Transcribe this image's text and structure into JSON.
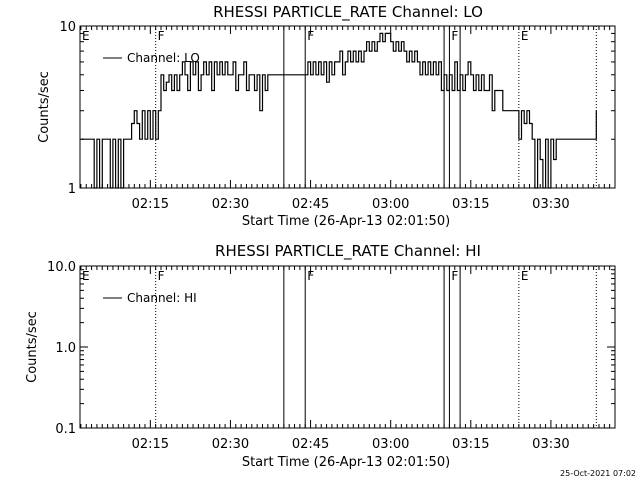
{
  "timestamp": "25-Oct-2021 07:02",
  "chart_data": [
    {
      "type": "line",
      "title": "RHESSI PARTICLE_RATE Channel: LO",
      "xlabel": "Start Time (26-Apr-13 02:01:50)",
      "ylabel": "Counts/sec",
      "yscale": "log",
      "ylim": [
        1,
        10
      ],
      "xlim": [
        "02:01:50",
        "03:42:00"
      ],
      "y_ticks": [
        "1",
        "10"
      ],
      "x_ticks": [
        "02:15",
        "02:30",
        "02:45",
        "03:00",
        "03:15",
        "03:30"
      ],
      "legend": "Channel: LO",
      "legend_position": "top-left",
      "markers": [
        {
          "label": "E",
          "time": "02:01:50",
          "style": "none"
        },
        {
          "label": "F",
          "time": "02:16:00",
          "style": "dotted"
        },
        {
          "label": "",
          "time": "02:40:00",
          "style": "solid"
        },
        {
          "label": "F",
          "time": "02:44:00",
          "style": "solid"
        },
        {
          "label": "",
          "time": "03:10:00",
          "style": "solid"
        },
        {
          "label": "F",
          "time": "03:11:00",
          "style": "solid"
        },
        {
          "label": "",
          "time": "03:13:00",
          "style": "solid"
        },
        {
          "label": "E",
          "time": "03:24:00",
          "style": "dotted"
        },
        {
          "label": "",
          "time": "03:38:30",
          "style": "dotted"
        }
      ],
      "series": [
        {
          "values": [
            [
              "02:02:00",
              2
            ],
            [
              "02:03:00",
              2
            ],
            [
              "02:04:00",
              2
            ],
            [
              "02:04:30",
              1
            ],
            [
              "02:05:00",
              2
            ],
            [
              "02:05:30",
              1
            ],
            [
              "02:06:00",
              2
            ],
            [
              "02:07:00",
              2
            ],
            [
              "02:07:30",
              1
            ],
            [
              "02:08:00",
              2
            ],
            [
              "02:08:30",
              1
            ],
            [
              "02:09:00",
              2
            ],
            [
              "02:09:30",
              1
            ],
            [
              "02:10:00",
              2
            ],
            [
              "02:11:00",
              2
            ],
            [
              "02:11:30",
              2.5
            ],
            [
              "02:12:00",
              3
            ],
            [
              "02:12:30",
              2.5
            ],
            [
              "02:13:00",
              2
            ],
            [
              "02:13:30",
              3
            ],
            [
              "02:14:00",
              2
            ],
            [
              "02:14:30",
              3
            ],
            [
              "02:15:00",
              2
            ],
            [
              "02:15:30",
              3
            ],
            [
              "02:16:00",
              2
            ],
            [
              "02:16:30",
              3
            ],
            [
              "02:17:00",
              5
            ],
            [
              "02:17:30",
              4
            ],
            [
              "02:18:00",
              4.5
            ],
            [
              "02:18:30",
              5
            ],
            [
              "02:19:00",
              4
            ],
            [
              "02:19:30",
              5
            ],
            [
              "02:20:00",
              4
            ],
            [
              "02:20:30",
              5
            ],
            [
              "02:21:00",
              6
            ],
            [
              "02:21:30",
              5
            ],
            [
              "02:22:00",
              4
            ],
            [
              "02:22:30",
              6
            ],
            [
              "02:23:00",
              5
            ],
            [
              "02:23:30",
              6
            ],
            [
              "02:24:00",
              4
            ],
            [
              "02:24:30",
              5
            ],
            [
              "02:25:00",
              6
            ],
            [
              "02:25:30",
              5
            ],
            [
              "02:26:00",
              6
            ],
            [
              "02:26:30",
              4
            ],
            [
              "02:27:00",
              6
            ],
            [
              "02:27:30",
              5
            ],
            [
              "02:28:00",
              6
            ],
            [
              "02:28:30",
              5
            ],
            [
              "02:29:00",
              6
            ],
            [
              "02:29:30",
              5
            ],
            [
              "02:30:00",
              5
            ],
            [
              "02:30:30",
              6
            ],
            [
              "02:31:00",
              4
            ],
            [
              "02:31:30",
              5
            ],
            [
              "02:32:00",
              5
            ],
            [
              "02:32:30",
              6
            ],
            [
              "02:33:00",
              4
            ],
            [
              "02:33:30",
              5
            ],
            [
              "02:34:00",
              5
            ],
            [
              "02:34:30",
              4
            ],
            [
              "02:35:00",
              5
            ],
            [
              "02:35:30",
              3
            ],
            [
              "02:36:00",
              5
            ],
            [
              "02:36:30",
              4
            ],
            [
              "02:37:00",
              5
            ],
            [
              "02:38:00",
              5
            ],
            [
              "02:39:00",
              5
            ],
            [
              "02:40:00",
              5
            ],
            [
              "02:41:00",
              5
            ],
            [
              "02:42:00",
              5
            ],
            [
              "02:43:00",
              5
            ],
            [
              "02:44:00",
              5
            ],
            [
              "02:44:30",
              6
            ],
            [
              "02:45:00",
              5
            ],
            [
              "02:45:30",
              6
            ],
            [
              "02:46:00",
              5
            ],
            [
              "02:46:30",
              6
            ],
            [
              "02:47:00",
              5
            ],
            [
              "02:47:30",
              6
            ],
            [
              "02:48:00",
              4.5
            ],
            [
              "02:48:30",
              6
            ],
            [
              "02:49:00",
              5
            ],
            [
              "02:49:30",
              6
            ],
            [
              "02:50:00",
              6
            ],
            [
              "02:50:30",
              7
            ],
            [
              "02:51:00",
              5
            ],
            [
              "02:51:30",
              6
            ],
            [
              "02:52:00",
              7
            ],
            [
              "02:52:30",
              6
            ],
            [
              "02:53:00",
              7
            ],
            [
              "02:53:30",
              6
            ],
            [
              "02:54:00",
              7
            ],
            [
              "02:54:30",
              6
            ],
            [
              "02:55:00",
              7
            ],
            [
              "02:55:30",
              8
            ],
            [
              "02:56:00",
              7
            ],
            [
              "02:56:30",
              8
            ],
            [
              "02:57:00",
              7
            ],
            [
              "02:57:30",
              8
            ],
            [
              "02:58:00",
              9
            ],
            [
              "02:58:30",
              8
            ],
            [
              "02:59:00",
              9
            ],
            [
              "02:59:30",
              9
            ],
            [
              "03:00:00",
              8
            ],
            [
              "03:00:30",
              7
            ],
            [
              "03:01:00",
              8
            ],
            [
              "03:01:30",
              7
            ],
            [
              "03:02:00",
              8
            ],
            [
              "03:02:30",
              7
            ],
            [
              "03:03:00",
              6
            ],
            [
              "03:03:30",
              7
            ],
            [
              "03:04:00",
              6
            ],
            [
              "03:04:30",
              7
            ],
            [
              "03:05:00",
              6
            ],
            [
              "03:05:30",
              5
            ],
            [
              "03:06:00",
              6
            ],
            [
              "03:06:30",
              5
            ],
            [
              "03:07:00",
              6
            ],
            [
              "03:07:30",
              5
            ],
            [
              "03:08:00",
              6
            ],
            [
              "03:08:30",
              5
            ],
            [
              "03:09:00",
              6
            ],
            [
              "03:09:30",
              4
            ],
            [
              "03:10:00",
              5
            ],
            [
              "03:10:30",
              4
            ],
            [
              "03:11:00",
              5
            ],
            [
              "03:11:30",
              4
            ],
            [
              "03:12:00",
              6
            ],
            [
              "03:12:30",
              4
            ],
            [
              "03:13:00",
              5
            ],
            [
              "03:13:30",
              4
            ],
            [
              "03:14:00",
              5
            ],
            [
              "03:14:30",
              6
            ],
            [
              "03:15:00",
              5
            ],
            [
              "03:15:30",
              4
            ],
            [
              "03:16:00",
              5
            ],
            [
              "03:16:30",
              4
            ],
            [
              "03:17:00",
              5
            ],
            [
              "03:17:30",
              4
            ],
            [
              "03:18:00",
              4
            ],
            [
              "03:18:30",
              5
            ],
            [
              "03:19:00",
              3
            ],
            [
              "03:19:30",
              4
            ],
            [
              "03:20:00",
              4
            ],
            [
              "03:20:30",
              4
            ],
            [
              "03:21:00",
              3
            ],
            [
              "03:22:00",
              3
            ],
            [
              "03:23:00",
              3
            ],
            [
              "03:23:30",
              3
            ],
            [
              "03:24:00",
              2
            ],
            [
              "03:24:30",
              3
            ],
            [
              "03:25:00",
              2.5
            ],
            [
              "03:25:30",
              3
            ],
            [
              "03:26:00",
              2.5
            ],
            [
              "03:26:30",
              2
            ],
            [
              "03:27:00",
              1
            ],
            [
              "03:27:30",
              2
            ],
            [
              "03:28:00",
              1.5
            ],
            [
              "03:28:30",
              1
            ],
            [
              "03:29:00",
              2
            ],
            [
              "03:29:30",
              1
            ],
            [
              "03:30:00",
              2
            ],
            [
              "03:30:30",
              1.5
            ],
            [
              "03:31:00",
              2
            ],
            [
              "03:32:00",
              2
            ],
            [
              "03:33:00",
              2
            ],
            [
              "03:34:00",
              2
            ],
            [
              "03:35:00",
              2
            ],
            [
              "03:36:00",
              2
            ],
            [
              "03:37:00",
              2
            ],
            [
              "03:38:00",
              2
            ],
            [
              "03:38:30",
              3
            ]
          ]
        }
      ]
    },
    {
      "type": "line",
      "title": "RHESSI PARTICLE_RATE Channel: HI",
      "xlabel": "Start Time (26-Apr-13 02:01:50)",
      "ylabel": "Counts/sec",
      "yscale": "log",
      "ylim": [
        0.1,
        10
      ],
      "xlim": [
        "02:01:50",
        "03:42:00"
      ],
      "y_ticks": [
        "0.1",
        "1.0",
        "10.0"
      ],
      "x_ticks": [
        "02:15",
        "02:30",
        "02:45",
        "03:00",
        "03:15",
        "03:30"
      ],
      "legend": "Channel: HI",
      "legend_position": "top-left",
      "markers": [
        {
          "label": "E",
          "time": "02:01:50",
          "style": "none"
        },
        {
          "label": "F",
          "time": "02:16:00",
          "style": "dotted"
        },
        {
          "label": "",
          "time": "02:40:00",
          "style": "solid"
        },
        {
          "label": "F",
          "time": "02:44:00",
          "style": "solid"
        },
        {
          "label": "",
          "time": "03:10:00",
          "style": "solid"
        },
        {
          "label": "F",
          "time": "03:11:00",
          "style": "solid"
        },
        {
          "label": "",
          "time": "03:13:00",
          "style": "solid"
        },
        {
          "label": "E",
          "time": "03:24:00",
          "style": "dotted"
        },
        {
          "label": "",
          "time": "03:38:30",
          "style": "dotted"
        }
      ],
      "series": [
        {
          "values": []
        }
      ]
    }
  ]
}
